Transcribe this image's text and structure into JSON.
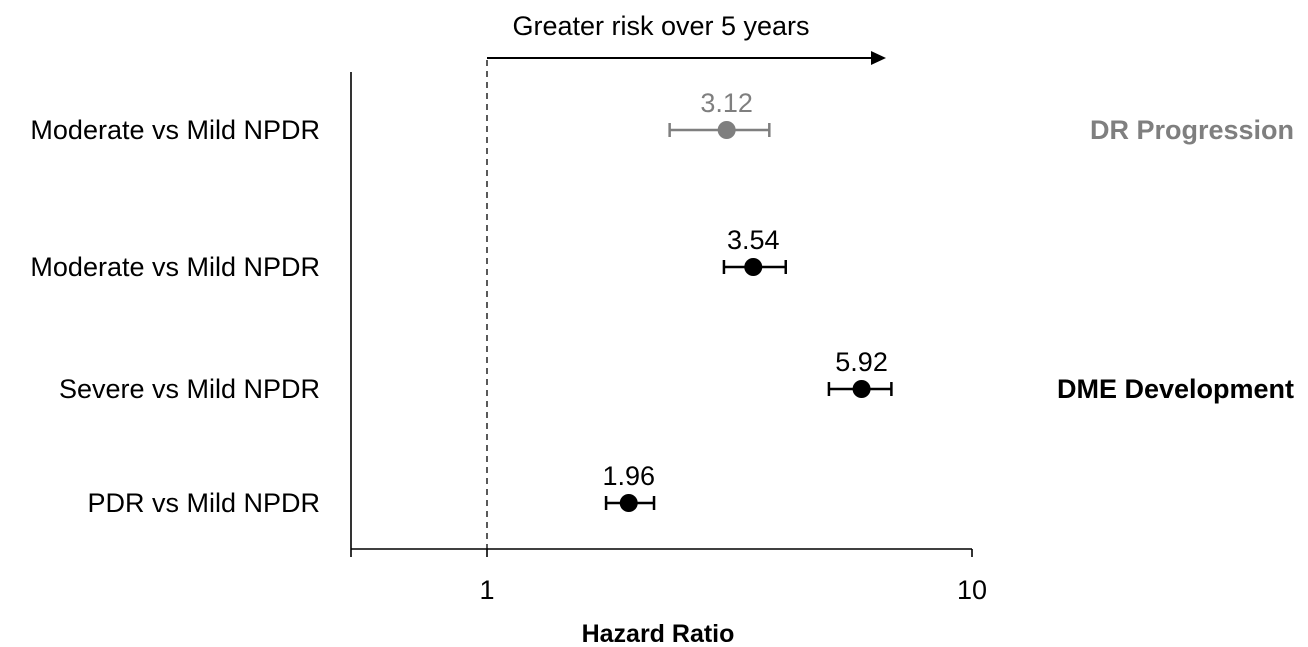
{
  "chart_data": {
    "type": "scatter",
    "xlabel": "Hazard Ratio",
    "x_scale": "log",
    "xlim": [
      0.53,
      10
    ],
    "xticks": [
      {
        "value": 1,
        "label": "1"
      },
      {
        "value": 10,
        "label": "10"
      }
    ],
    "reference_line": {
      "x": 1,
      "style": "dashed"
    },
    "direction_annotation": {
      "text": "Greater risk over 5 years",
      "arrow": "right"
    },
    "rows": [
      {
        "label": "Moderate vs Mild NPDR",
        "hr": 3.12,
        "ci_low": 2.38,
        "ci_high": 3.82,
        "data_label": "3.12",
        "color": "#7f7f7f"
      },
      {
        "label": "Moderate vs Mild NPDR",
        "hr": 3.54,
        "ci_low": 3.08,
        "ci_high": 4.13,
        "data_label": "3.54",
        "color": "#000000"
      },
      {
        "label": "Severe vs Mild NPDR",
        "hr": 5.92,
        "ci_low": 5.07,
        "ci_high": 6.82,
        "data_label": "5.92",
        "color": "#000000"
      },
      {
        "label": "PDR vs Mild NPDR",
        "hr": 1.96,
        "ci_low": 1.76,
        "ci_high": 2.21,
        "data_label": "1.96",
        "color": "#000000"
      }
    ],
    "groups": [
      {
        "name": "DR Progression",
        "color": "#7f7f7f",
        "rows": [
          0
        ]
      },
      {
        "name": "DME Development",
        "color": "#000000",
        "rows": [
          1,
          2,
          3
        ]
      }
    ]
  }
}
